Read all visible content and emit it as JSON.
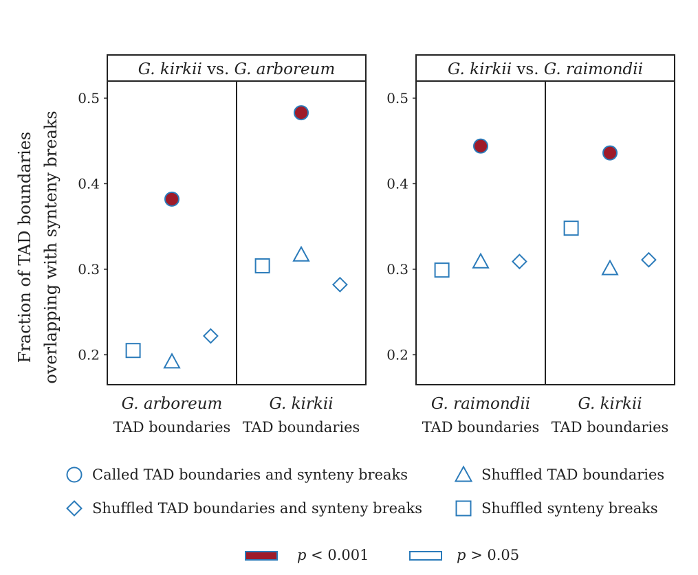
{
  "chart_data": {
    "type": "scatter",
    "ylabel_lines": [
      "Fraction of TAD boundaries",
      "overlapping with synteny breaks"
    ],
    "ylim": [
      0.165,
      0.52
    ],
    "yticks": [
      0.2,
      0.3,
      0.4,
      0.5
    ],
    "ytick_labels": [
      "0.2",
      "0.3",
      "0.4",
      "0.5"
    ],
    "panels": [
      {
        "title_parts": [
          {
            "text": "G. kirkii",
            "italic": true
          },
          {
            "text": " vs. ",
            "italic": false
          },
          {
            "text": "G. arboreum",
            "italic": true
          }
        ],
        "facets": [
          {
            "species": "G. arboreum",
            "sublabel": "TAD boundaries",
            "points": [
              {
                "series": "shuffled_synteny",
                "y": 0.205,
                "significant": false
              },
              {
                "series": "called",
                "y": 0.382,
                "significant": true
              },
              {
                "series": "shuffled_tad",
                "y": 0.192,
                "significant": false
              },
              {
                "series": "shuffled_both",
                "y": 0.222,
                "significant": false
              }
            ]
          },
          {
            "species": "G. kirkii",
            "sublabel": "TAD boundaries",
            "points": [
              {
                "series": "shuffled_synteny",
                "y": 0.304,
                "significant": false
              },
              {
                "series": "called",
                "y": 0.483,
                "significant": true
              },
              {
                "series": "shuffled_tad",
                "y": 0.317,
                "significant": false
              },
              {
                "series": "shuffled_both",
                "y": 0.282,
                "significant": false
              }
            ]
          }
        ]
      },
      {
        "title_parts": [
          {
            "text": "G. kirkii",
            "italic": true
          },
          {
            "text": " vs. ",
            "italic": false
          },
          {
            "text": "G. raimondii",
            "italic": true
          }
        ],
        "facets": [
          {
            "species": "G. raimondii",
            "sublabel": "TAD boundaries",
            "points": [
              {
                "series": "shuffled_synteny",
                "y": 0.299,
                "significant": false
              },
              {
                "series": "called",
                "y": 0.444,
                "significant": true
              },
              {
                "series": "shuffled_tad",
                "y": 0.309,
                "significant": false
              },
              {
                "series": "shuffled_both",
                "y": 0.309,
                "significant": false
              }
            ]
          },
          {
            "species": "G. kirkii",
            "sublabel": "TAD boundaries",
            "points": [
              {
                "series": "shuffled_synteny",
                "y": 0.348,
                "significant": false
              },
              {
                "series": "called",
                "y": 0.436,
                "significant": true
              },
              {
                "series": "shuffled_tad",
                "y": 0.301,
                "significant": false
              },
              {
                "series": "shuffled_both",
                "y": 0.311,
                "significant": false
              }
            ]
          }
        ]
      }
    ],
    "legend": [
      {
        "series": "called",
        "shape": "circle",
        "label": "Called TAD boundaries and synteny breaks"
      },
      {
        "series": "shuffled_tad",
        "shape": "triangle",
        "label": "Shuffled TAD boundaries"
      },
      {
        "series": "shuffled_both",
        "shape": "diamond",
        "label": "Shuffled TAD boundaries and synteny breaks"
      },
      {
        "series": "shuffled_synteny",
        "shape": "square",
        "label": "Shuffled synteny breaks"
      }
    ],
    "significance_legend": [
      {
        "fill": "filled",
        "p_symbol": "p",
        "label": " < 0.001"
      },
      {
        "fill": "open",
        "p_symbol": "p",
        "label": " > 0.05"
      }
    ]
  },
  "colors": {
    "marker_stroke": "#2b7bba",
    "significant_fill": "#9e1b2a",
    "frame": "#222222",
    "text": "#222222"
  }
}
